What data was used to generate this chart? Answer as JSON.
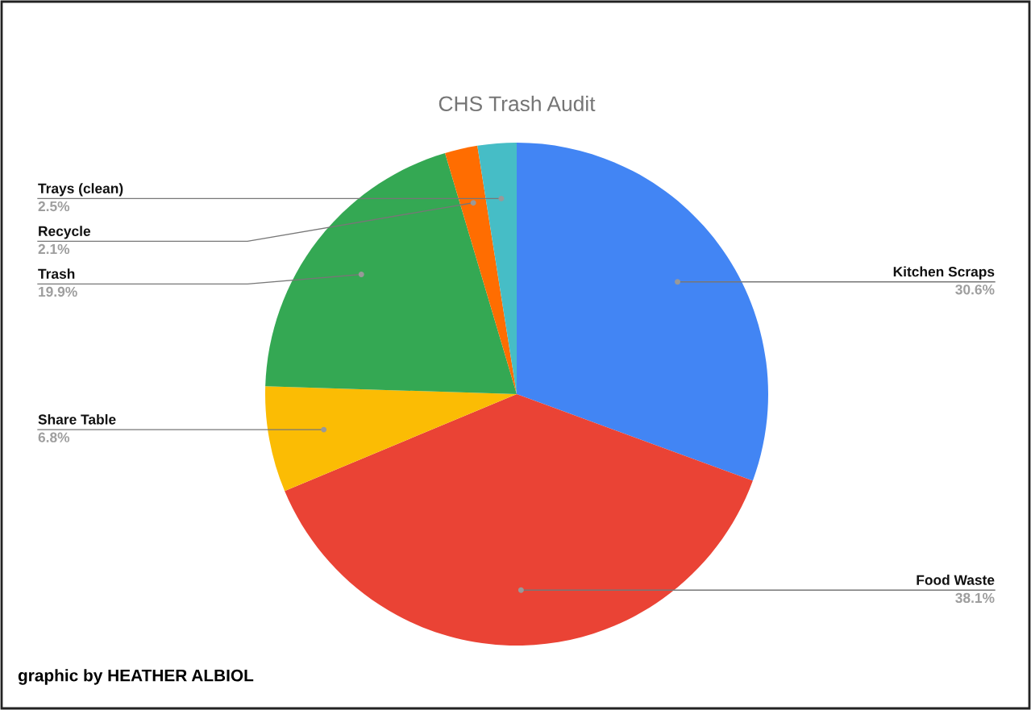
{
  "chart_data": {
    "type": "pie",
    "title": "CHS Trash Audit",
    "categories": [
      "Kitchen Scraps",
      "Food Waste",
      "Share Table",
      "Trash",
      "Recycle",
      "Trays (clean)"
    ],
    "values": [
      30.6,
      38.1,
      6.8,
      19.9,
      2.1,
      2.5
    ],
    "colors": [
      "#4285f4",
      "#ea4335",
      "#fbbc04",
      "#34a853",
      "#ff6d01",
      "#46bdc6"
    ],
    "value_labels": [
      "30.6%",
      "38.1%",
      "6.8%",
      "19.9%",
      "2.1%",
      "2.5%"
    ],
    "annotations": [
      "graphic by HEATHER ALBIOL"
    ],
    "legend": false
  }
}
